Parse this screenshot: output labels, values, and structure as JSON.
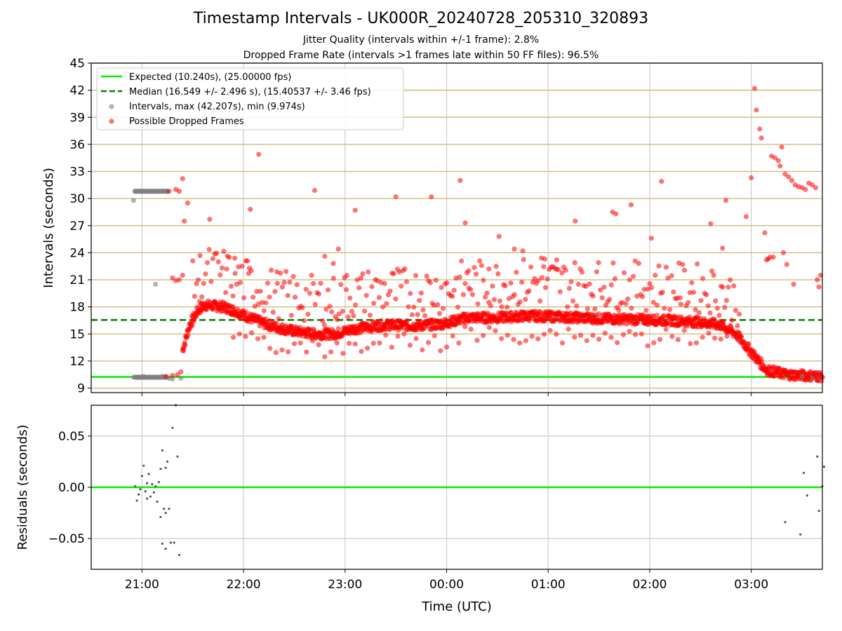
{
  "title": "Timestamp Intervals - UK000R_20240728_205310_320893",
  "subtitle_1": "Jitter Quality (intervals within +/-1 frame): 2.8%",
  "subtitle_2": "Dropped Frame Rate (intervals >1 frames late within 50 FF files): 96.5%",
  "colors": {
    "expected": "#00ee00",
    "median": "#008000",
    "intervals": "#808080",
    "dropped": "#ff0000",
    "hgrid": "#d2bb7a",
    "vgrid": "#cccccc"
  },
  "chart_data": [
    {
      "type": "scatter",
      "ylabel": "Intervals (seconds)",
      "ylim": [
        8.5,
        45
      ],
      "yticks": [
        "9",
        "12",
        "15",
        "18",
        "21",
        "24",
        "27",
        "30",
        "33",
        "36",
        "39",
        "42",
        "45"
      ],
      "xlim_hours": [
        20.5,
        27.7
      ],
      "xticks": [
        "21:00",
        "22:00",
        "23:00",
        "00:00",
        "01:00",
        "02:00",
        "03:00"
      ],
      "grid": "vertical at time ticks, horizontal at interval ticks",
      "legend_position": "upper-left",
      "legend": {
        "expected": "Expected (10.240s), (25.00000 fps)",
        "median": "Median (16.549 +/- 2.496 s), (15.40537 +/- 3.46 fps)",
        "intervals": "Intervals, max (42.207s), min (9.974s)",
        "dropped": "Possible Dropped Frames"
      },
      "expected_line": 10.24,
      "median_line": 16.549,
      "series": [
        {
          "name": "Intervals, max (42.207s), min (9.974s)",
          "points": [
            [
              "20:55",
              29.8
            ],
            [
              "20:56",
              30.8
            ],
            [
              "20:58",
              30.8
            ],
            [
              "21:00",
              30.8
            ],
            [
              "21:03",
              30.8
            ],
            [
              "21:06",
              30.8
            ],
            [
              "21:09",
              30.8
            ],
            [
              "21:12",
              30.8
            ],
            [
              "21:15",
              30.8
            ],
            [
              "20:55",
              10.2
            ],
            [
              "20:58",
              10.2
            ],
            [
              "21:01",
              10.3
            ],
            [
              "21:04",
              10.2
            ],
            [
              "21:08",
              10.2
            ],
            [
              "21:12",
              10.3
            ],
            [
              "21:16",
              10.1
            ],
            [
              "21:18",
              10.0
            ],
            [
              "21:23",
              10.1
            ],
            [
              "21:08",
              20.5
            ],
            [
              "03:30",
              10.3
            ],
            [
              "03:36",
              10.1
            ],
            [
              "03:40",
              10.2
            ]
          ]
        },
        {
          "name": "Possible Dropped Frames",
          "points": [
            [
              "21:16",
              30.8
            ],
            [
              "21:20",
              31.0
            ],
            [
              "21:22",
              30.8
            ],
            [
              "21:24",
              32.2
            ],
            [
              "21:25",
              27.5
            ],
            [
              "21:27",
              29.5
            ],
            [
              "21:18",
              21.2
            ],
            [
              "21:20",
              20.9
            ],
            [
              "21:22",
              21.0
            ],
            [
              "21:24",
              21.5
            ],
            [
              "21:14",
              10.3
            ],
            [
              "21:18",
              10.4
            ],
            [
              "21:21",
              10.5
            ],
            [
              "21:23",
              10.8
            ],
            [
              "21:34",
              18.6
            ],
            [
              "21:40",
              27.7
            ],
            [
              "21:50",
              22.2
            ],
            [
              "21:55",
              21.7
            ],
            [
              "22:03",
              21.7
            ],
            [
              "22:04",
              28.8
            ],
            [
              "22:09",
              34.9
            ],
            [
              "22:20",
              20.6
            ],
            [
              "22:42",
              30.9
            ],
            [
              "22:48",
              23.6
            ],
            [
              "22:53",
              22.8
            ],
            [
              "22:56",
              24.4
            ],
            [
              "23:01",
              21.5
            ],
            [
              "23:06",
              28.7
            ],
            [
              "23:30",
              30.2
            ],
            [
              "23:51",
              30.2
            ],
            [
              "00:08",
              32.0
            ],
            [
              "00:11",
              27.3
            ],
            [
              "00:13",
              22.0
            ],
            [
              "00:25",
              22.2
            ],
            [
              "00:31",
              25.8
            ],
            [
              "00:40",
              24.4
            ],
            [
              "00:45",
              24.2
            ],
            [
              "00:56",
              23.4
            ],
            [
              "00:58",
              23.3
            ],
            [
              "01:05",
              23.2
            ],
            [
              "01:16",
              27.5
            ],
            [
              "01:38",
              28.5
            ],
            [
              "01:40",
              28.3
            ],
            [
              "01:49",
              29.3
            ],
            [
              "02:01",
              25.6
            ],
            [
              "02:07",
              31.9
            ],
            [
              "02:18",
              19.0
            ],
            [
              "02:36",
              27.2
            ],
            [
              "02:43",
              24.5
            ],
            [
              "02:45",
              29.8
            ],
            [
              "02:57",
              28.0
            ],
            [
              "03:00",
              32.3
            ],
            [
              "03:02",
              42.2
            ],
            [
              "03:03",
              39.8
            ],
            [
              "03:05",
              37.7
            ],
            [
              "03:06",
              36.7
            ],
            [
              "03:08",
              26.2
            ],
            [
              "03:09",
              23.2
            ],
            [
              "03:10",
              23.3
            ],
            [
              "03:11",
              23.5
            ],
            [
              "03:13",
              23.5
            ],
            [
              "03:12",
              34.7
            ],
            [
              "03:14",
              34.5
            ],
            [
              "03:16",
              34.2
            ],
            [
              "03:18",
              35.7
            ],
            [
              "03:17",
              33.6
            ],
            [
              "03:19",
              24.0
            ],
            [
              "03:20",
              32.7
            ],
            [
              "03:21",
              22.7
            ],
            [
              "03:22",
              32.4
            ],
            [
              "03:24",
              32.0
            ],
            [
              "03:25",
              20.5
            ],
            [
              "03:26",
              31.5
            ],
            [
              "03:28",
              31.3
            ],
            [
              "03:30",
              31.2
            ],
            [
              "03:32",
              31.0
            ],
            [
              "03:34",
              31.7
            ],
            [
              "03:36",
              31.5
            ],
            [
              "03:38",
              31.2
            ],
            [
              "03:39",
              21.0
            ],
            [
              "03:40",
              20.2
            ],
            [
              "03:41",
              21.5
            ],
            [
              "03:40",
              10.3
            ],
            [
              "03:42",
              10.2
            ]
          ]
        }
      ]
    },
    {
      "type": "scatter",
      "ylabel": "Residuals (seconds)",
      "ylim": [
        -0.08,
        0.08
      ],
      "yticks": [
        "−0.05",
        "0.00",
        "0.05"
      ],
      "xlabel": "Time (UTC)",
      "xticks": [
        "21:00",
        "22:00",
        "23:00",
        "00:00",
        "01:00",
        "02:00",
        "03:00"
      ],
      "zero_line": 0.0,
      "points": [
        [
          "20:56",
          0.001
        ],
        [
          "20:57",
          -0.013
        ],
        [
          "20:58",
          -0.007
        ],
        [
          "20:59",
          -0.002
        ],
        [
          "21:00",
          0.011
        ],
        [
          "21:01",
          0.021
        ],
        [
          "21:02",
          -0.004
        ],
        [
          "21:03",
          -0.011
        ],
        [
          "21:04",
          0.013
        ],
        [
          "21:05",
          -0.009
        ],
        [
          "21:06",
          0.003
        ],
        [
          "21:07",
          -0.005
        ],
        [
          "21:08",
          0.001
        ],
        [
          "21:09",
          -0.014
        ],
        [
          "21:10",
          0.005
        ],
        [
          "21:11",
          -0.029
        ],
        [
          "21:11",
          0.018
        ],
        [
          "21:12",
          0.036
        ],
        [
          "21:13",
          -0.021
        ],
        [
          "21:14",
          0.019
        ],
        [
          "21:14",
          -0.025
        ],
        [
          "21:15",
          0.025
        ],
        [
          "21:16",
          -0.021
        ],
        [
          "21:17",
          -0.054
        ],
        [
          "21:18",
          0.058
        ],
        [
          "21:19",
          -0.054
        ],
        [
          "21:20",
          0.082
        ],
        [
          "21:21",
          0.03
        ],
        [
          "21:22",
          -0.066
        ],
        [
          "21:12",
          -0.055
        ],
        [
          "21:14",
          -0.06
        ],
        [
          "21:03",
          0.004
        ],
        [
          "03:20",
          -0.034
        ],
        [
          "03:29",
          -0.046
        ],
        [
          "03:31",
          0.014
        ],
        [
          "03:33",
          -0.008
        ],
        [
          "03:39",
          0.03
        ],
        [
          "03:40",
          -0.023
        ],
        [
          "03:42",
          0.001
        ],
        [
          "03:43",
          0.02
        ]
      ]
    }
  ]
}
